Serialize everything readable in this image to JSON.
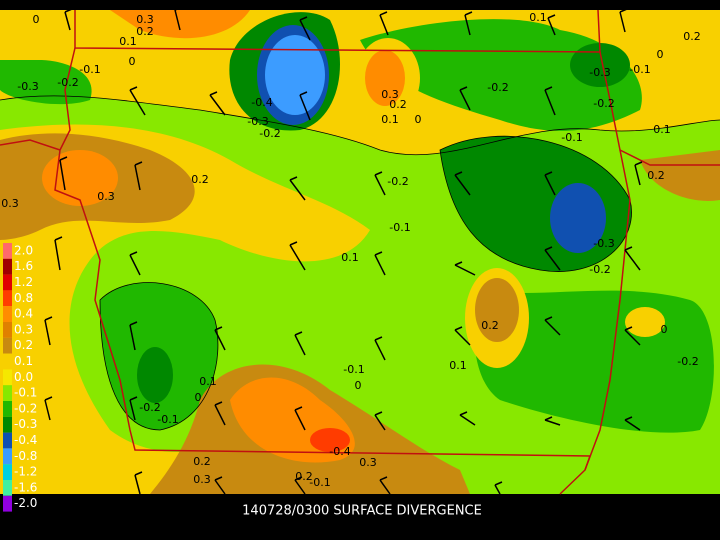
{
  "caption": "140728/0300 SURFACE DIVERGENCE",
  "legend": {
    "items": [
      {
        "label": "2.0",
        "color": "#ff6a6a"
      },
      {
        "label": "1.6",
        "color": "#a00000"
      },
      {
        "label": "1.2",
        "color": "#e00000"
      },
      {
        "label": "0.8",
        "color": "#ff3c00"
      },
      {
        "label": "0.4",
        "color": "#ff8c00"
      },
      {
        "label": "0.3",
        "color": "#e08000"
      },
      {
        "label": "0.2",
        "color": "#c88a10"
      },
      {
        "label": "0.1",
        "color": "#f8d000"
      },
      {
        "label": "0.0",
        "color": "#f5e800"
      },
      {
        "label": "-0.1",
        "color": "#88e800"
      },
      {
        "label": "-0.2",
        "color": "#20b800"
      },
      {
        "label": "-0.3",
        "color": "#008800"
      },
      {
        "label": "-0.4",
        "color": "#1050b0"
      },
      {
        "label": "-0.8",
        "color": "#3c9cff"
      },
      {
        "label": "-1.2",
        "color": "#00d0e0"
      },
      {
        "label": "-1.6",
        "color": "#40f0a0"
      },
      {
        "label": "-2.0",
        "color": "#9000e0"
      }
    ]
  },
  "contour_labels": [
    "0",
    "0.3",
    "0.2",
    "0.1",
    "0",
    "-0.1",
    "-0.3",
    "-0.2",
    "-0.4",
    "-0.3",
    "-0.2",
    "0.3",
    "0.2",
    "0.1",
    "0",
    "-0.2",
    "0.1",
    "-0.3",
    "-0.1",
    "-0.2",
    "0",
    "0.2",
    "0.1",
    "-0.1",
    "-0.2",
    "-0.1",
    "0.2",
    "0.3",
    "0.3",
    "0.1",
    "-0.3",
    "-0.2",
    "0.2",
    "0.2",
    "0.1",
    "0",
    "-0.2",
    "-0.1",
    "0",
    "0.1",
    "0",
    "-0.2",
    "-0.1",
    "-0.4",
    "0.3",
    "0.2",
    "0.3",
    "0.2",
    "-0.1"
  ]
}
